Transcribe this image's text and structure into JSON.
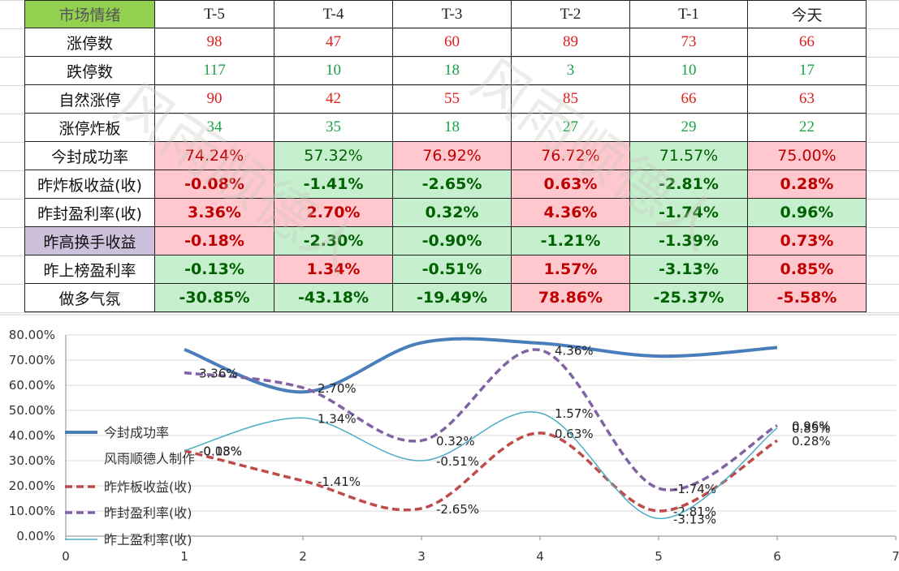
{
  "table": {
    "header": [
      "市场情绪",
      "T-5",
      "T-4",
      "T-3",
      "T-2",
      "T-1",
      "今天"
    ],
    "rows": [
      {
        "label": "涨停数",
        "cells": [
          98,
          47,
          60,
          89,
          73,
          66
        ]
      },
      {
        "label": "跌停数",
        "cells": [
          117,
          10,
          18,
          3,
          10,
          17
        ]
      },
      {
        "label": "自然涨停",
        "cells": [
          90,
          42,
          55,
          85,
          66,
          63
        ]
      },
      {
        "label": "涨停炸板",
        "cells": [
          34,
          35,
          18,
          27,
          29,
          22
        ]
      },
      {
        "label": "今封成功率",
        "cells": [
          "74.24%",
          "57.32%",
          "76.92%",
          "76.72%",
          "71.57%",
          "75.00%"
        ]
      },
      {
        "label": "昨炸板收益(收)",
        "cells": [
          "-0.08%",
          "-1.41%",
          "-2.65%",
          "0.63%",
          "-2.81%",
          "0.28%"
        ]
      },
      {
        "label": "昨封盈利率(收)",
        "cells": [
          "3.36%",
          "2.70%",
          "0.32%",
          "4.36%",
          "-1.74%",
          "0.96%"
        ]
      },
      {
        "label": "昨高换手收益",
        "cells": [
          "-0.18%",
          "-2.30%",
          "-0.90%",
          "-1.21%",
          "-1.39%",
          "0.73%"
        ]
      },
      {
        "label": "昨上榜盈利率",
        "cells": [
          "-0.13%",
          "1.34%",
          "-0.51%",
          "1.57%",
          "-3.13%",
          "0.85%"
        ]
      },
      {
        "label": "做多气氛",
        "cells": [
          "-30.85%",
          "-43.18%",
          "-19.49%",
          "78.86%",
          "-25.37%",
          "-5.58%"
        ]
      }
    ]
  },
  "watermark": "风雨顺德人",
  "chart_data": {
    "type": "line",
    "x": [
      1,
      2,
      3,
      4,
      5,
      6
    ],
    "xlim": [
      0,
      7
    ],
    "xticks": [
      0,
      1,
      2,
      3,
      4,
      5,
      6,
      7
    ],
    "ylim": [
      0,
      80
    ],
    "yticks": [
      {
        "value": 0,
        "label": "0.00%"
      },
      {
        "value": 10,
        "label": "10.00%"
      },
      {
        "value": 20,
        "label": "20.00%"
      },
      {
        "value": 30,
        "label": "30.00%"
      },
      {
        "value": 40,
        "label": "40.00%"
      },
      {
        "value": 50,
        "label": "50.00%"
      },
      {
        "value": 60,
        "label": "60.00%"
      },
      {
        "value": 70,
        "label": "70.00%"
      },
      {
        "value": 80,
        "label": "80.00%"
      }
    ],
    "credit": "风雨顺德人制作",
    "series": [
      {
        "name": "今封成功率",
        "color": "#4a7ebb",
        "dashed": false,
        "width": 4,
        "values": [
          74.24,
          57.32,
          76.92,
          76.72,
          71.57,
          75.0
        ]
      },
      {
        "name": "昨炸板收益(收)",
        "color": "#be4b48",
        "dashed": true,
        "width": 3.5,
        "values": [
          34,
          22,
          11,
          41,
          10,
          38
        ]
      },
      {
        "name": "昨封盈利率(收)",
        "color": "#7f63a2",
        "dashed": true,
        "width": 3.5,
        "values": [
          65,
          59,
          38,
          74,
          19,
          44
        ]
      },
      {
        "name": "昨上盈利率(收)",
        "color": "#4bacc6",
        "dashed": false,
        "width": 1.5,
        "values": [
          34,
          47,
          30,
          49,
          7,
          43
        ]
      }
    ]
  }
}
